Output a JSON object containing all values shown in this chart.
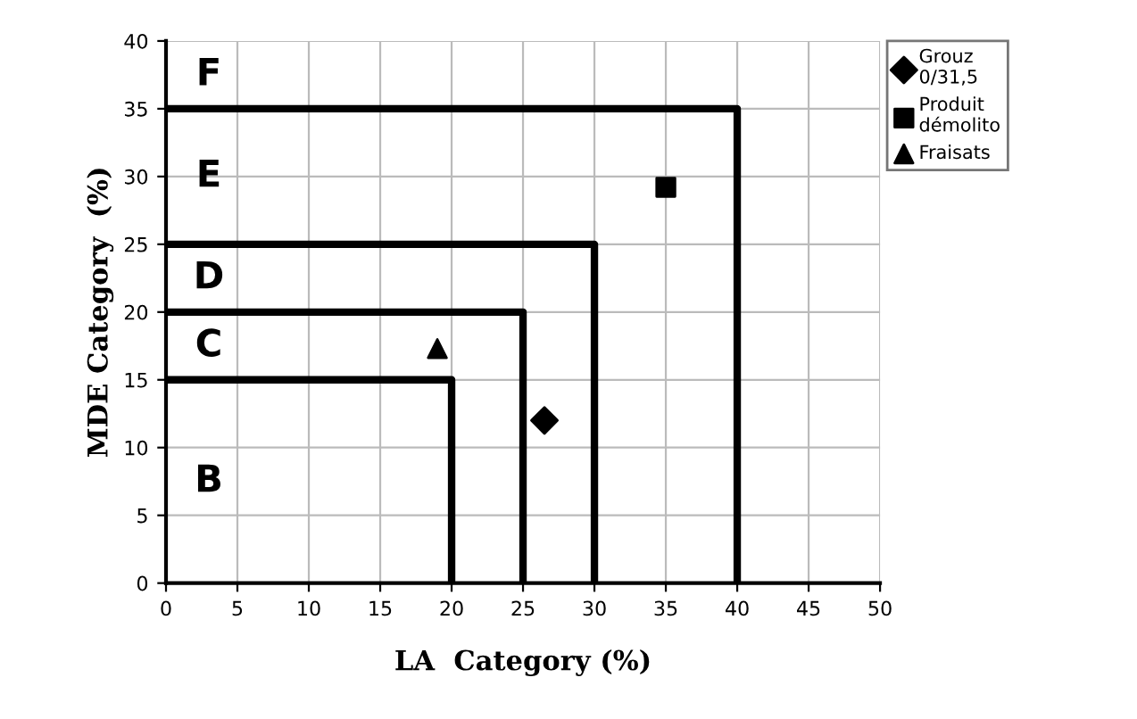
{
  "chart_data": {
    "type": "scatter",
    "xlabel": "LA  Category (%)",
    "ylabel": "MDE Category  (%)",
    "xlim": [
      0,
      50
    ],
    "xticks": [
      0,
      5,
      10,
      15,
      20,
      25,
      30,
      35,
      40,
      45,
      50
    ],
    "ylim": [
      0,
      40
    ],
    "yticks": [
      0,
      5,
      10,
      15,
      20,
      25,
      30,
      35,
      40
    ],
    "grid": true,
    "legend": "right",
    "series": [
      {
        "type": "line",
        "color": "#000000",
        "x": [
          0,
          20,
          20
        ],
        "values": [
          15,
          15,
          0
        ],
        "marker": "none"
      },
      {
        "type": "line",
        "color": "#000000",
        "x": [
          0,
          25,
          25
        ],
        "values": [
          20,
          20,
          0
        ],
        "marker": "none"
      },
      {
        "type": "line",
        "color": "#000000",
        "x": [
          0,
          30,
          30
        ],
        "values": [
          25,
          25,
          0
        ],
        "marker": "none"
      },
      {
        "type": "line",
        "color": "#000000",
        "x": [
          0,
          40,
          40
        ],
        "values": [
          35,
          35,
          0
        ],
        "marker": "none"
      },
      {
        "name": "Grouz\n0/31,5",
        "color": "#000000",
        "x": [
          26.5
        ],
        "values": [
          12
        ],
        "marker": "diamond"
      },
      {
        "name": "Produit\ndémolito",
        "color": "#000000",
        "x": [
          35
        ],
        "values": [
          29.2
        ],
        "marker": "square"
      },
      {
        "name": "Fraisats",
        "color": "#000000",
        "x": [
          19
        ],
        "values": [
          17.3
        ],
        "marker": "triangle"
      }
    ],
    "annotations": [
      "F",
      "E",
      "D",
      "C",
      "B"
    ]
  }
}
